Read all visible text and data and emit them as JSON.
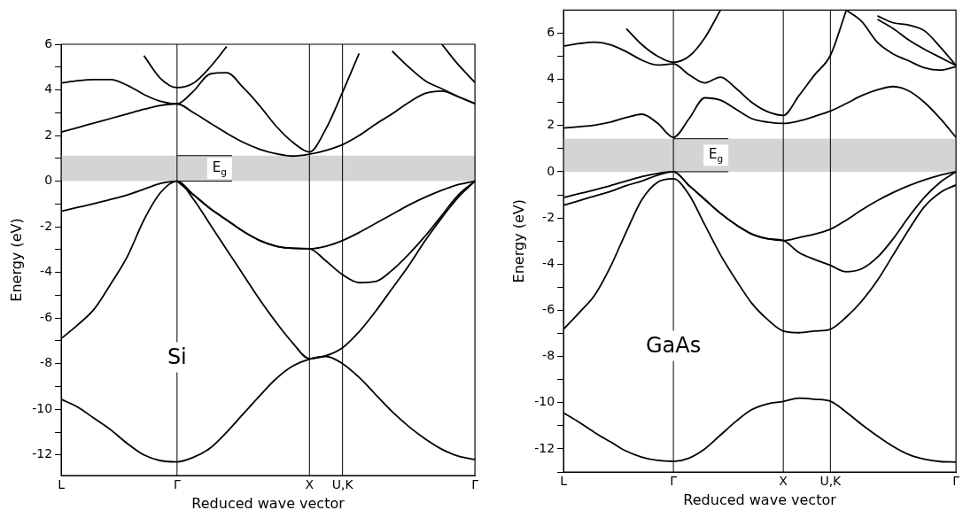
{
  "chart_data": [
    {
      "type": "line",
      "xlabel": "Reduced wave vector",
      "ylabel": "Energy (eV)",
      "annotations": [
        "Si"
      ],
      "marker": "none",
      "grid": false,
      "legend": false,
      "categories": [
        "L",
        null,
        null,
        null,
        null,
        null,
        null,
        "Γ",
        null,
        null,
        null,
        null,
        null,
        null,
        null,
        "X",
        null,
        "U,K",
        null,
        null,
        null,
        null,
        null,
        null,
        null,
        "Γ"
      ],
      "ylim": [
        -12.9,
        6
      ],
      "yticks": [
        {
          "value": -12,
          "label": "-12"
        },
        {
          "value": -11,
          "label": null
        },
        {
          "value": -10,
          "label": "-10"
        },
        {
          "value": -9,
          "label": null
        },
        {
          "value": -8,
          "label": "-8"
        },
        {
          "value": -7,
          "label": null
        },
        {
          "value": -6,
          "label": "-6"
        },
        {
          "value": -5,
          "label": null
        },
        {
          "value": -4,
          "label": "-4"
        },
        {
          "value": -3,
          "label": null
        },
        {
          "value": -2,
          "label": "-2"
        },
        {
          "value": -1,
          "label": null
        },
        0,
        {
          "value": 1,
          "label": null
        },
        2,
        {
          "value": 3,
          "label": null
        },
        4,
        {
          "value": 5,
          "label": null
        },
        6
      ],
      "ref_lines": [
        {
          "axis": "x",
          "value": "Γ",
          "color": "#000000"
        },
        {
          "axis": "x",
          "value": "X",
          "color": "#000000"
        },
        {
          "axis": "x",
          "value": "U,K",
          "color": "#000000"
        }
      ],
      "bands": [
        {
          "axis": "y",
          "from": 0,
          "to": 1.12,
          "label": "E$_{g}$",
          "color": "#d4d4d4"
        }
      ],
      "series": [
        {
          "color": "#000000",
          "values": [
            -9.56,
            -9.9,
            -10.4,
            -10.9,
            -11.5,
            -12.0,
            -12.25,
            -12.3,
            -12.1,
            -11.7,
            -11.0,
            -10.2,
            -9.4,
            -8.65,
            -8.1,
            -7.8,
            -7.68,
            -8.0,
            -8.6,
            -9.35,
            -10.1,
            -10.75,
            -11.3,
            -11.75,
            -12.05,
            -12.2
          ]
        },
        {
          "color": "#000000",
          "values": [
            -6.9,
            -6.3,
            -5.6,
            -4.5,
            -3.3,
            -1.7,
            -0.5,
            0,
            -0.8,
            -1.9,
            -3.0,
            -4.1,
            -5.2,
            -6.2,
            -7.1,
            -7.78,
            -7.65,
            -7.3,
            -6.6,
            -5.7,
            -4.7,
            -3.7,
            -2.6,
            -1.6,
            -0.7,
            0
          ]
        },
        {
          "color": "#000000",
          "values": [
            -1.32,
            -1.15,
            -0.98,
            -0.8,
            -0.6,
            -0.35,
            -0.1,
            0,
            -0.6,
            -1.2,
            -1.7,
            -2.2,
            -2.6,
            -2.85,
            -2.94,
            -2.96,
            -2.85,
            -2.6,
            -2.25,
            -1.85,
            -1.45,
            -1.05,
            -0.7,
            -0.4,
            -0.15,
            0
          ]
        },
        {
          "color": "#000000",
          "values": [
            null,
            null,
            null,
            null,
            null,
            null,
            null,
            0,
            -0.6,
            -1.2,
            -1.7,
            -2.2,
            -2.6,
            -2.85,
            -2.94,
            -2.96,
            -3.5,
            -4.1,
            -4.45,
            -4.4,
            -3.9,
            -3.2,
            -2.4,
            -1.5,
            -0.6,
            0
          ]
        },
        {
          "color": "#000000",
          "values": [
            2.15,
            2.35,
            2.55,
            2.75,
            2.95,
            3.15,
            3.32,
            3.39,
            3.0,
            2.55,
            2.1,
            1.7,
            1.4,
            1.2,
            1.1,
            1.18,
            1.35,
            1.6,
            2.0,
            2.5,
            2.95,
            3.45,
            3.85,
            3.95,
            3.7,
            3.4
          ]
        },
        {
          "color": "#000000",
          "values": [
            null,
            null,
            null,
            null,
            null,
            null,
            null,
            null,
            null,
            null,
            null,
            null,
            null,
            null,
            null,
            null,
            null,
            null,
            null,
            null,
            5.7,
            5.0,
            4.4,
            4.05,
            3.7,
            3.4
          ]
        },
        {
          "color": "#000000",
          "values": [
            null,
            null,
            null,
            null,
            null,
            null,
            null,
            null,
            null,
            null,
            null,
            null,
            null,
            null,
            null,
            null,
            null,
            null,
            null,
            null,
            null,
            null,
            null,
            6,
            5.1,
            4.33
          ]
        },
        {
          "color": "#000000",
          "values": [
            4.3,
            4.4,
            4.45,
            4.45,
            4.2,
            3.8,
            3.5,
            3.39,
            3.95,
            4.7,
            4.75,
            4.1,
            3.3,
            2.4,
            1.7,
            1.28,
            2.3,
            3.9,
            5.6,
            null,
            null,
            null,
            null,
            null,
            null,
            null
          ]
        },
        {
          "color": "#000000",
          "values": [
            null,
            null,
            null,
            null,
            null,
            5.5,
            4.5,
            4.1,
            4.3,
            5.0,
            5.9,
            null,
            null,
            null,
            null,
            null,
            null,
            null,
            null,
            null,
            null,
            null,
            null,
            null,
            null,
            null
          ]
        }
      ]
    },
    {
      "type": "line",
      "xlabel": "Reduced wave vector",
      "ylabel": "Energy (eV)",
      "annotations": [
        "GaAs"
      ],
      "marker": "none",
      "grid": false,
      "legend": false,
      "categories": [
        "L",
        null,
        null,
        null,
        null,
        null,
        null,
        "Γ",
        null,
        null,
        null,
        null,
        null,
        null,
        "X",
        null,
        null,
        "U,K",
        null,
        null,
        null,
        null,
        null,
        null,
        null,
        "Γ"
      ],
      "ylim": [
        -13,
        7
      ],
      "yticks": [
        {
          "value": -13,
          "label": null
        },
        {
          "value": -12,
          "label": "-12"
        },
        {
          "value": -11,
          "label": null
        },
        {
          "value": -10,
          "label": "-10"
        },
        {
          "value": -9,
          "label": null
        },
        {
          "value": -8,
          "label": "-8"
        },
        {
          "value": -7,
          "label": null
        },
        {
          "value": -6,
          "label": "-6"
        },
        {
          "value": -5,
          "label": null
        },
        {
          "value": -4,
          "label": "-4"
        },
        {
          "value": -3,
          "label": null
        },
        {
          "value": -2,
          "label": "-2"
        },
        {
          "value": -1,
          "label": null
        },
        0,
        {
          "value": 1,
          "label": null
        },
        2,
        {
          "value": 3,
          "label": null
        },
        4,
        {
          "value": 5,
          "label": null
        },
        6
      ],
      "ref_lines": [
        {
          "axis": "x",
          "value": "Γ",
          "color": "#000000"
        },
        {
          "axis": "x",
          "value": "X",
          "color": "#000000"
        },
        {
          "axis": "x",
          "value": "U,K",
          "color": "#000000"
        }
      ],
      "bands": [
        {
          "axis": "y",
          "from": 0,
          "to": 1.43,
          "label": "E$_{g}$",
          "color": "#d4d4d4"
        }
      ],
      "series": [
        {
          "color": "#000000",
          "values": [
            -10.44,
            -10.85,
            -11.3,
            -11.7,
            -12.1,
            -12.36,
            -12.5,
            -12.54,
            -12.4,
            -12.0,
            -11.4,
            -10.8,
            -10.3,
            -10.05,
            -9.95,
            -9.8,
            -9.85,
            -9.94,
            -10.4,
            -10.95,
            -11.45,
            -11.9,
            -12.25,
            -12.45,
            -12.55,
            -12.57
          ]
        },
        {
          "color": "#000000",
          "values": [
            -6.82,
            -6.1,
            -5.33,
            -4.1,
            -2.6,
            -1.2,
            -0.45,
            -0.3,
            -1.0,
            -2.3,
            -3.6,
            -4.7,
            -5.7,
            -6.4,
            -6.9,
            -6.97,
            -6.9,
            -6.82,
            -6.3,
            -5.6,
            -4.7,
            -3.6,
            -2.5,
            -1.5,
            -0.9,
            -0.57
          ]
        },
        {
          "color": "#000000",
          "values": [
            -1.12,
            -0.95,
            -0.78,
            -0.6,
            -0.4,
            -0.21,
            -0.07,
            0,
            -0.6,
            -1.2,
            -1.8,
            -2.3,
            -2.7,
            -2.9,
            -2.98,
            -2.85,
            -2.7,
            -2.49,
            -2.1,
            -1.65,
            -1.25,
            -0.9,
            -0.6,
            -0.35,
            -0.15,
            0
          ]
        },
        {
          "color": "#000000",
          "values": [
            -1.45,
            -1.25,
            -1.05,
            -0.85,
            -0.6,
            -0.4,
            -0.15,
            0,
            -0.6,
            -1.2,
            -1.8,
            -2.3,
            -2.7,
            -2.9,
            -2.98,
            -3.5,
            -3.8,
            -4.05,
            -4.33,
            -4.2,
            -3.7,
            -2.9,
            -1.95,
            -1.1,
            -0.45,
            0
          ]
        },
        {
          "color": "#000000",
          "values": [
            1.89,
            1.95,
            2.02,
            2.15,
            2.35,
            2.49,
            2.1,
            1.49,
            2.3,
            3.2,
            3.1,
            2.7,
            2.3,
            2.15,
            2.09,
            2.2,
            2.4,
            2.63,
            2.95,
            3.3,
            3.55,
            3.69,
            3.5,
            3.0,
            2.3,
            1.49
          ]
        },
        {
          "color": "#000000",
          "values": [
            5.44,
            5.55,
            5.61,
            5.5,
            5.2,
            4.83,
            4.62,
            4.67,
            4.2,
            3.85,
            4.1,
            3.6,
            3.0,
            2.6,
            2.44,
            3.3,
            4.2,
            5.04,
            6.97,
            null,
            null,
            null,
            null,
            null,
            null,
            null
          ]
        },
        {
          "color": "#000000",
          "values": [
            null,
            null,
            null,
            null,
            6.2,
            5.5,
            5.0,
            4.74,
            5.0,
            5.8,
            7,
            null,
            null,
            null,
            null,
            null,
            null,
            null,
            null,
            null,
            null,
            null,
            null,
            null,
            null,
            null
          ]
        },
        {
          "color": "#000000",
          "values": [
            null,
            null,
            null,
            null,
            null,
            null,
            null,
            null,
            null,
            null,
            null,
            null,
            null,
            null,
            null,
            null,
            null,
            null,
            7,
            6.5,
            5.6,
            5.1,
            4.8,
            4.5,
            4.4,
            4.55
          ]
        },
        {
          "color": "#000000",
          "values": [
            null,
            null,
            null,
            null,
            null,
            null,
            null,
            null,
            null,
            null,
            null,
            null,
            null,
            null,
            null,
            null,
            null,
            null,
            null,
            null,
            6.6,
            6.2,
            5.7,
            5.3,
            4.95,
            4.6
          ]
        },
        {
          "color": "#000000",
          "values": [
            null,
            null,
            null,
            null,
            null,
            null,
            null,
            null,
            null,
            null,
            null,
            null,
            null,
            null,
            null,
            null,
            null,
            null,
            null,
            null,
            6.75,
            6.45,
            6.35,
            6.1,
            5.4,
            4.6
          ]
        }
      ]
    }
  ]
}
